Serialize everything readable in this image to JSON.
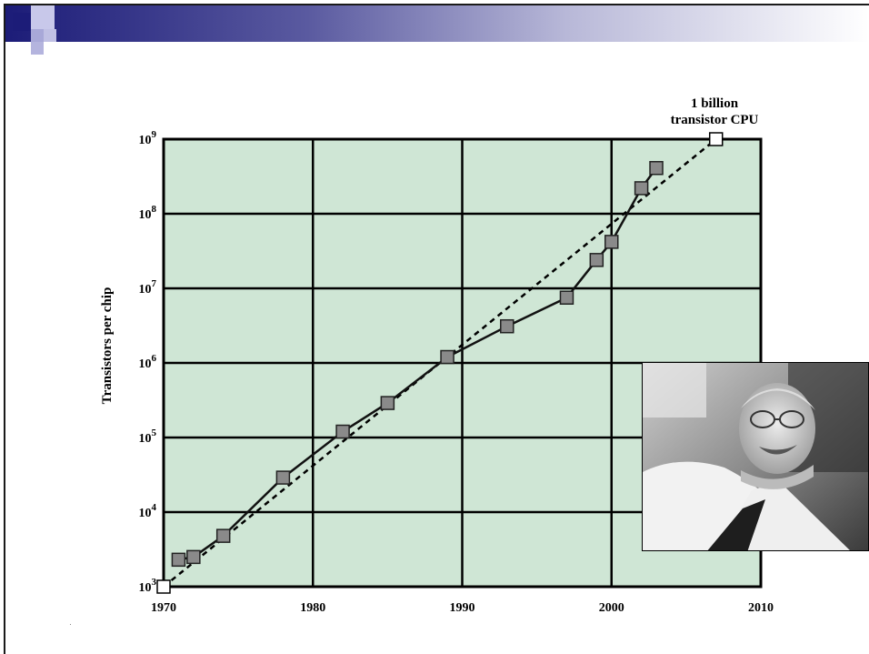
{
  "chart_data": {
    "type": "scatter",
    "ylabel": "Transistors per chip",
    "xlabel": "",
    "y_scale": "log10",
    "xlim": [
      1970,
      2010
    ],
    "ylim_exponent": [
      3,
      9
    ],
    "x_ticks": [
      1970,
      1980,
      1990,
      2000,
      2010
    ],
    "y_ticks": [
      {
        "base": "10",
        "exp": "3"
      },
      {
        "base": "10",
        "exp": "4"
      },
      {
        "base": "10",
        "exp": "5"
      },
      {
        "base": "10",
        "exp": "6"
      },
      {
        "base": "10",
        "exp": "7"
      },
      {
        "base": "10",
        "exp": "8"
      },
      {
        "base": "10",
        "exp": "9"
      }
    ],
    "series": [
      {
        "points": [
          [
            1971,
            2300
          ],
          [
            1972,
            2500
          ],
          [
            1974,
            4800
          ],
          [
            1978,
            29000
          ],
          [
            1982,
            120000
          ],
          [
            1985,
            290000
          ],
          [
            1989,
            1200000
          ],
          [
            1993,
            3100000
          ],
          [
            1997,
            7500000
          ],
          [
            1999,
            24000000
          ],
          [
            2000,
            42000000
          ],
          [
            2002,
            220000000
          ],
          [
            2003,
            410000000
          ]
        ]
      },
      {
        "style": "dashed",
        "points": [
          [
            1970,
            1000
          ],
          [
            2007,
            1000000000
          ]
        ]
      }
    ],
    "annotation": {
      "line1": "1 billion",
      "line2": "transistor CPU",
      "x": 2007,
      "y": 1000000000
    },
    "grid": true,
    "background": "#cfe6d5",
    "marker_color": "#8a8a8a"
  },
  "colors": {
    "plot_background": "#cfe6d5",
    "grid": "#000000",
    "header_dark": "#1c1c78"
  }
}
